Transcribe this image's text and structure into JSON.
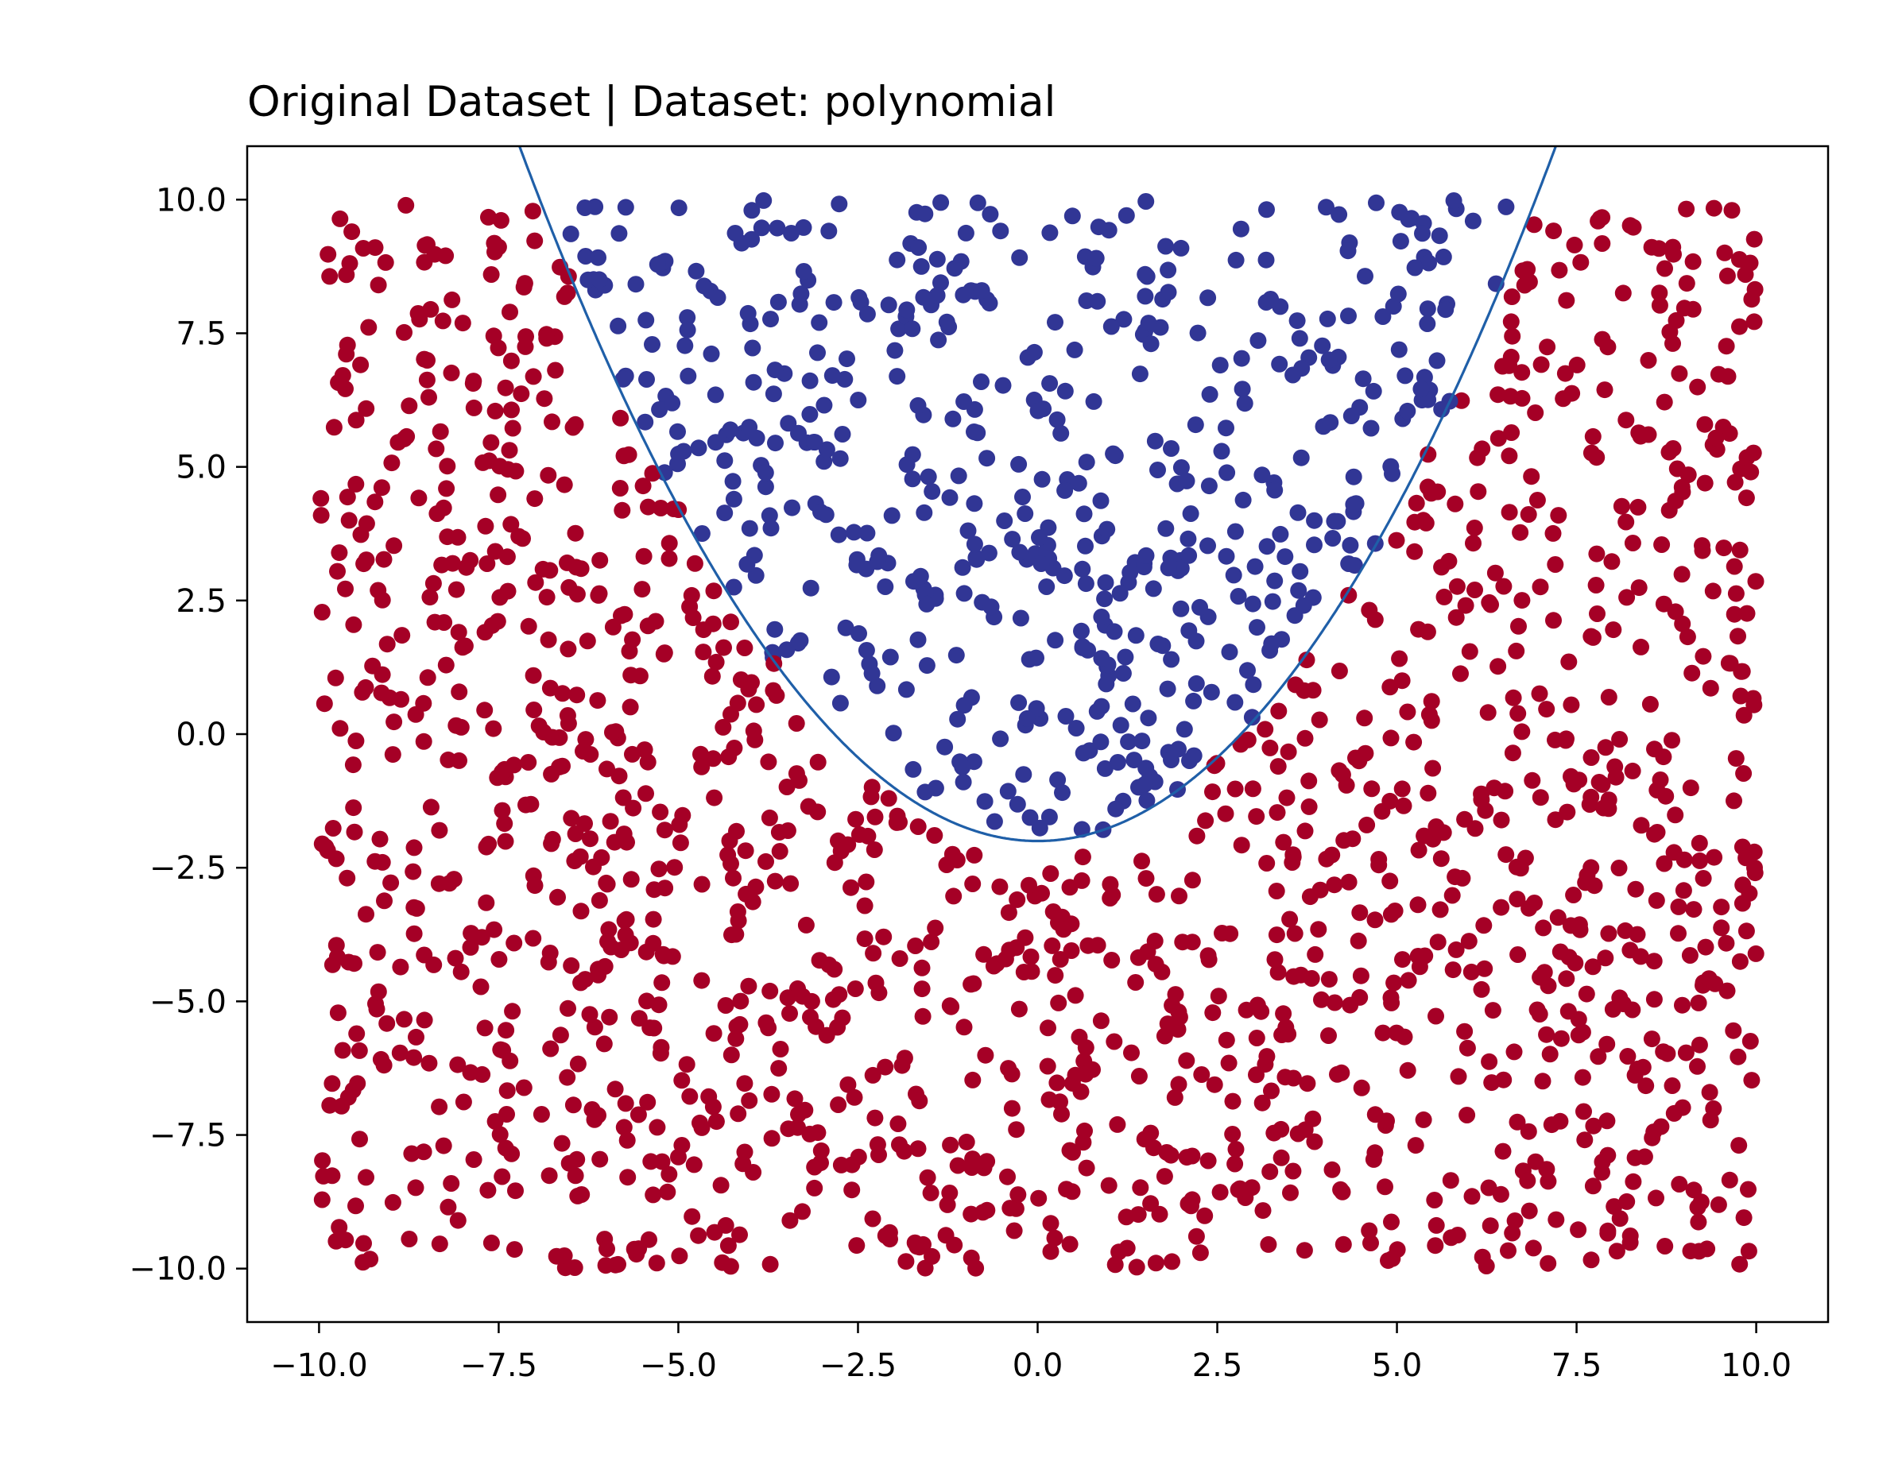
{
  "chart_data": {
    "type": "scatter",
    "title": "Original Dataset | Dataset: polynomial",
    "xlabel": "",
    "ylabel": "",
    "xlim": [
      -11.0,
      11.0
    ],
    "ylim": [
      -11.0,
      11.0
    ],
    "x_ticks": [
      -10.0,
      -7.5,
      -5.0,
      -2.5,
      0.0,
      2.5,
      5.0,
      7.5,
      10.0
    ],
    "y_ticks": [
      -10.0,
      -7.5,
      -5.0,
      -2.5,
      0.0,
      2.5,
      5.0,
      7.5,
      10.0
    ],
    "x_tick_labels": [
      "−10.0",
      "−7.5",
      "−5.0",
      "−2.5",
      "0.0",
      "2.5",
      "5.0",
      "7.5",
      "10.0"
    ],
    "y_tick_labels": [
      "−10.0",
      "−7.5",
      "−5.0",
      "−2.5",
      "0.0",
      "2.5",
      "5.0",
      "7.5",
      "10.0"
    ],
    "grid": false,
    "legend": "none",
    "point_count": 2000,
    "x_range_of_points": [
      -10,
      10
    ],
    "y_range_of_points": [
      -10,
      10
    ],
    "classes": [
      {
        "label": "below curve",
        "color": "#a50026"
      },
      {
        "label": "above curve",
        "color": "#313695"
      }
    ],
    "boundary_curve": {
      "equation": "y = 0.25*x^2 - 2",
      "coefficients": {
        "a": 0.25,
        "b": 0.0,
        "c": -2.0
      },
      "color": "#1f5fa8"
    }
  }
}
